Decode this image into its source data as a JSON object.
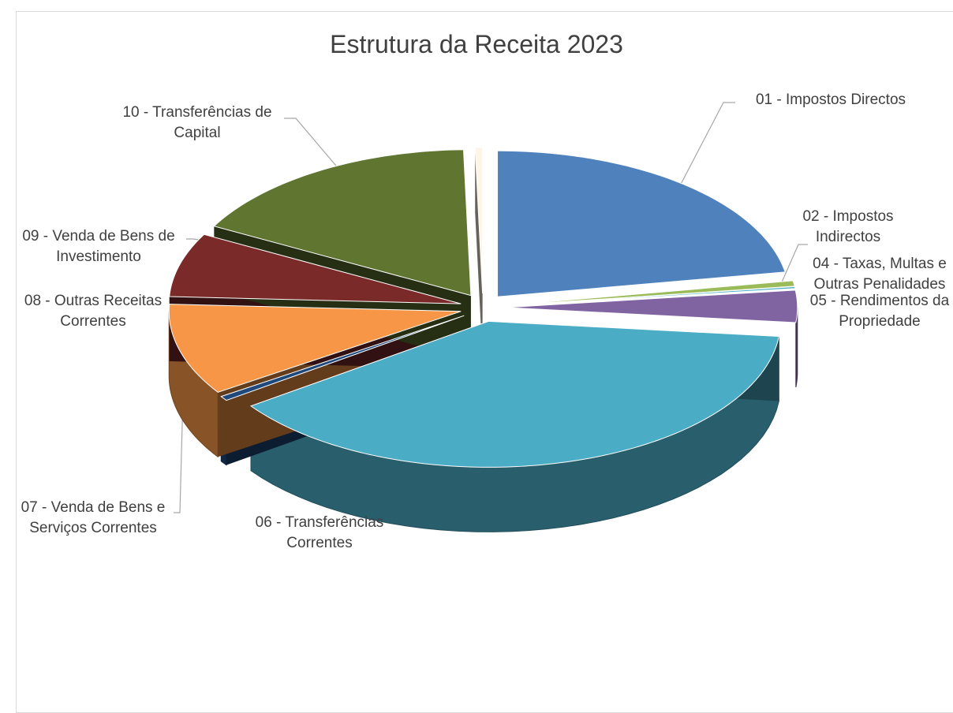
{
  "chart_data": {
    "type": "pie3d",
    "title": "Estrutura da Receita 2023",
    "categories": [
      "01 - Impostos Directos",
      "02 - Impostos Indirectos",
      "04 - Taxas, Multas e Outras Penalidades",
      "05 - Rendimentos da Propriedade",
      "06 - Transferências Correntes",
      "07 - Venda de Bens e Serviços Correntes",
      "08 - Outras Receitas Correntes",
      "09 - Venda de Bens de Investimento",
      "10 - Transferências de Capital",
      null
    ],
    "values": [
      22,
      0.6,
      0.2,
      3.5,
      38,
      0.5,
      10,
      7,
      16.5,
      0.4
    ],
    "colors": [
      "#4f81bd",
      "#9bbb59",
      "#4bacc6",
      "#8064a2",
      "#4bacc6",
      "#1f497d",
      "#f79646",
      "#7b2a2a",
      "#5f7530",
      "#fdf5e6"
    ]
  }
}
